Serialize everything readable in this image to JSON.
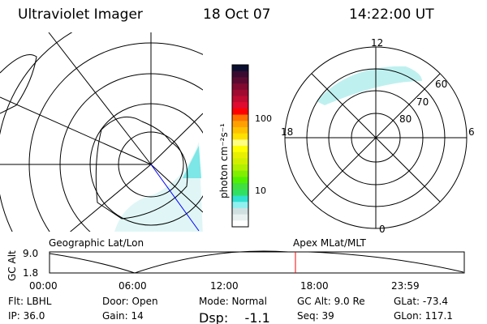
{
  "header": {
    "title": "Ultraviolet Imager",
    "date": "18 Oct 07",
    "time": "14:22:00 UT"
  },
  "colorbar": {
    "label": "photon cm⁻²s⁻¹",
    "ticks": [
      "100",
      "10"
    ],
    "colors": [
      "#0a0f30",
      "#3a0a30",
      "#5a0a30",
      "#800a30",
      "#a00a30",
      "#c00a30",
      "#e00a30",
      "#ff0000",
      "#ff7000",
      "#ffa000",
      "#ffc000",
      "#ffe000",
      "#ffff80",
      "#ffff00",
      "#e8f000",
      "#d0f000",
      "#b0f000",
      "#80f000",
      "#50f000",
      "#40e040",
      "#30e060",
      "#30e0d0",
      "#90f0f0",
      "#d0e0e0",
      "#e8f0f0",
      "#ffffff"
    ]
  },
  "geo_map": {
    "label": "Geographic Lat/Lon"
  },
  "polar_map": {
    "label": "Apex MLat/MLT",
    "mlt_labels": [
      "12",
      "18",
      "6",
      "0"
    ],
    "lat_labels": [
      "60",
      "70",
      "80"
    ]
  },
  "alt_plot": {
    "ylabel": "GC Alt",
    "yticks": [
      "9.0",
      "1.8"
    ],
    "xticks": [
      "00:00",
      "06:00",
      "12:00",
      "18:00",
      "23:59"
    ],
    "current_time_color": "#ff0000"
  },
  "info": {
    "filter": "Flt: LBHL",
    "ip": "IP: 36.0",
    "door": "Door: Open",
    "gain": "Gain: 14",
    "mode": "Mode: Normal",
    "dsp": "Dsp:    -1.1",
    "gc_alt": "GC Alt: 9.0 Re",
    "seq": "Seq: 39",
    "glat": "GLat: -73.4",
    "glon": "GLon: 117.1"
  }
}
